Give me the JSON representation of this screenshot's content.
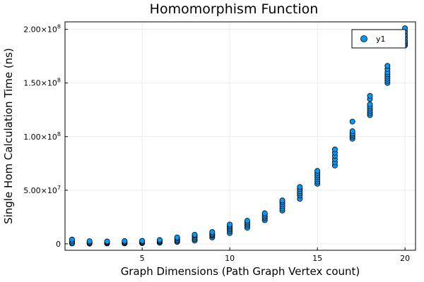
{
  "chart_data": {
    "type": "scatter",
    "title": "Homomorphism Function",
    "xlabel": "Graph Dimensions (Path Graph Vertex count)",
    "ylabel": "Single Hom Calculation Time (ns)",
    "xlim": [
      0.6,
      20.6
    ],
    "ylim": [
      -6000000,
      207000000
    ],
    "xticks": [
      5,
      10,
      15,
      20
    ],
    "xtick_labels": [
      "5",
      "10",
      "15",
      "20"
    ],
    "yticks": [
      0,
      50000000,
      100000000,
      150000000,
      200000000
    ],
    "ytick_labels": [
      {
        "mant": "0",
        "exp": ""
      },
      {
        "mant": "5.00×10",
        "exp": "7"
      },
      {
        "mant": "1.00×10",
        "exp": "8"
      },
      {
        "mant": "1.50×10",
        "exp": "8"
      },
      {
        "mant": "2.00×10",
        "exp": "8"
      }
    ],
    "grid": true,
    "legend_position": "top-right",
    "series": [
      {
        "name": "y1",
        "color": "#009af9",
        "points": [
          [
            1,
            300000
          ],
          [
            1,
            1200000
          ],
          [
            1,
            2500000
          ],
          [
            1,
            4000000
          ],
          [
            2,
            200000
          ],
          [
            2,
            800000
          ],
          [
            2,
            1500000
          ],
          [
            2,
            2500000
          ],
          [
            3,
            300000
          ],
          [
            3,
            900000
          ],
          [
            3,
            1600000
          ],
          [
            3,
            2200000
          ],
          [
            4,
            400000
          ],
          [
            4,
            1000000
          ],
          [
            4,
            1800000
          ],
          [
            4,
            2600000
          ],
          [
            5,
            600000
          ],
          [
            5,
            1300000
          ],
          [
            5,
            2000000
          ],
          [
            5,
            2800000
          ],
          [
            6,
            1000000
          ],
          [
            6,
            1800000
          ],
          [
            6,
            2700000
          ],
          [
            6,
            3600000
          ],
          [
            7,
            1800000
          ],
          [
            7,
            2800000
          ],
          [
            7,
            3800000
          ],
          [
            7,
            5000000
          ],
          [
            7,
            6000000
          ],
          [
            8,
            3000000
          ],
          [
            8,
            4500000
          ],
          [
            8,
            6000000
          ],
          [
            8,
            7500000
          ],
          [
            8,
            8500000
          ],
          [
            9,
            6000000
          ],
          [
            9,
            7500000
          ],
          [
            9,
            8500000
          ],
          [
            9,
            9500000
          ],
          [
            9,
            11000000
          ],
          [
            10,
            10000000
          ],
          [
            10,
            12000000
          ],
          [
            10,
            13500000
          ],
          [
            10,
            15000000
          ],
          [
            10,
            16500000
          ],
          [
            10,
            18000000
          ],
          [
            11,
            15000000
          ],
          [
            11,
            17000000
          ],
          [
            11,
            18500000
          ],
          [
            11,
            20000000
          ],
          [
            11,
            21500000
          ],
          [
            12,
            22000000
          ],
          [
            12,
            24000000
          ],
          [
            12,
            25500000
          ],
          [
            12,
            27000000
          ],
          [
            12,
            28500000
          ],
          [
            13,
            31000000
          ],
          [
            13,
            33000000
          ],
          [
            13,
            35000000
          ],
          [
            13,
            37000000
          ],
          [
            13,
            39000000
          ],
          [
            13,
            40500000
          ],
          [
            14,
            42000000
          ],
          [
            14,
            45000000
          ],
          [
            14,
            47000000
          ],
          [
            14,
            49000000
          ],
          [
            14,
            51000000
          ],
          [
            14,
            53000000
          ],
          [
            15,
            56000000
          ],
          [
            15,
            58000000
          ],
          [
            15,
            60000000
          ],
          [
            15,
            62000000
          ],
          [
            15,
            64000000
          ],
          [
            15,
            66000000
          ],
          [
            15,
            68000000
          ],
          [
            16,
            73000000
          ],
          [
            16,
            76000000
          ],
          [
            16,
            79000000
          ],
          [
            16,
            82000000
          ],
          [
            16,
            85000000
          ],
          [
            16,
            88000000
          ],
          [
            17,
            98000000
          ],
          [
            17,
            100000000
          ],
          [
            17,
            101500000
          ],
          [
            17,
            103000000
          ],
          [
            17,
            105000000
          ],
          [
            17,
            114000000
          ],
          [
            18,
            120000000
          ],
          [
            18,
            122000000
          ],
          [
            18,
            124000000
          ],
          [
            18,
            126000000
          ],
          [
            18,
            128000000
          ],
          [
            18,
            130000000
          ],
          [
            18,
            135000000
          ],
          [
            18,
            138000000
          ],
          [
            19,
            150000000
          ],
          [
            19,
            152000000
          ],
          [
            19,
            154000000
          ],
          [
            19,
            156000000
          ],
          [
            19,
            158000000
          ],
          [
            19,
            160000000
          ],
          [
            19,
            163000000
          ],
          [
            19,
            166000000
          ],
          [
            20,
            185000000
          ],
          [
            20,
            187000000
          ],
          [
            20,
            189000000
          ],
          [
            20,
            192000000
          ],
          [
            20,
            195000000
          ],
          [
            20,
            198000000
          ],
          [
            20,
            201000000
          ]
        ]
      }
    ]
  }
}
